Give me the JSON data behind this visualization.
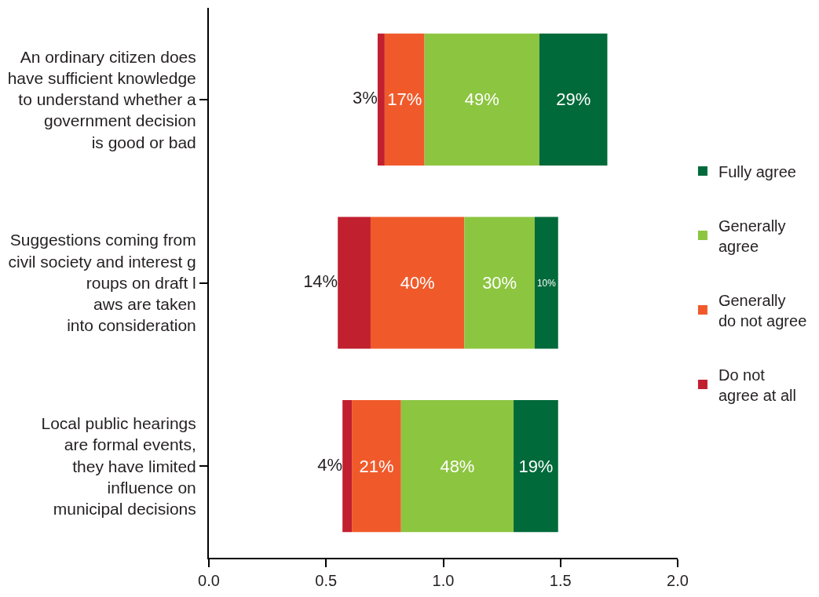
{
  "chart_data": {
    "type": "bar",
    "orientation": "horizontal",
    "categories": [
      "An ordinary citizen does\nhave sufficient knowledge\nto understand whether a\ngovernment decision\nis good or bad",
      "Suggestions coming from\ncivil society and interest g\nroups on draft l\naws are taken\ninto consideration",
      "Local public hearings\nare formal events,\nthey have limited\ninfluence on\nmunicipal decisions"
    ],
    "series": [
      {
        "name": "Do not\nagree at all",
        "color": "#c1202f",
        "base": [
          0.72,
          0.55,
          0.57
        ],
        "values": [
          0.03,
          0.14,
          0.04
        ],
        "value_labels": [
          "3%",
          "14%",
          "4%"
        ]
      },
      {
        "name": "Generally\ndo not agree",
        "color": "#f05a2b",
        "base": [
          0.75,
          0.69,
          0.61
        ],
        "values": [
          0.17,
          0.4,
          0.21
        ],
        "value_labels": [
          "17%",
          "40%",
          "21%"
        ]
      },
      {
        "name": "Generally\nagree",
        "color": "#8cc540",
        "base": [
          0.92,
          1.09,
          0.82
        ],
        "values": [
          0.49,
          0.3,
          0.48
        ],
        "value_labels": [
          "49%",
          "30%",
          "48%"
        ]
      },
      {
        "name": "Fully agree",
        "color": "#006a3a",
        "base": [
          1.41,
          1.39,
          1.3
        ],
        "values": [
          0.29,
          0.1,
          0.19
        ],
        "value_labels": [
          "29%",
          "10%",
          "19%"
        ]
      }
    ],
    "xlim": [
      0,
      2.0
    ],
    "xticks": [
      {
        "value": 0,
        "label": "0.0"
      },
      {
        "value": 0.5,
        "label": "0.5"
      },
      {
        "value": 1.0,
        "label": "1.0"
      },
      {
        "value": 1.5,
        "label": "1.5"
      },
      {
        "value": 2.0,
        "label": "2.0"
      }
    ],
    "legend": "right"
  }
}
